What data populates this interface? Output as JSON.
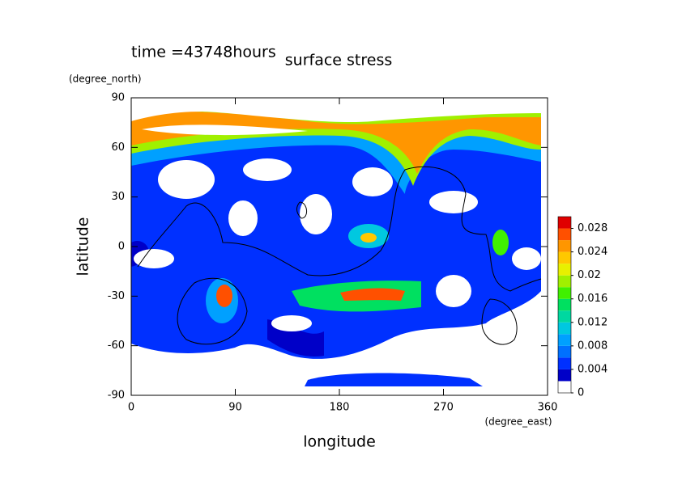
{
  "chart_data": {
    "type": "contour",
    "title": "surface stress",
    "annotation": "time =43748hours",
    "x_label": "longitude",
    "x_unit": "(degree_east)",
    "y_label": "latitude",
    "y_unit": "(degree_north)",
    "xlim": [
      0,
      360
    ],
    "xticks": [
      0,
      90,
      180,
      270,
      360
    ],
    "ylim": [
      -90,
      90
    ],
    "yticks": [
      90,
      60,
      30,
      0,
      -30,
      -60,
      -90
    ],
    "colorbar": {
      "lim": [
        0,
        0.03
      ],
      "ticks": [
        0,
        0.004,
        0.008,
        0.012,
        0.016,
        0.02,
        0.024,
        0.028
      ],
      "levels": [
        0,
        0.002,
        0.004,
        0.006,
        0.008,
        0.01,
        0.012,
        0.014,
        0.016,
        0.018,
        0.02,
        0.022,
        0.024,
        0.026,
        0.028,
        0.03
      ],
      "colors": [
        "#ffffff",
        "#0000c8",
        "#0030ff",
        "#0070ff",
        "#00a0ff",
        "#00c8e0",
        "#00d8a0",
        "#00e060",
        "#40f000",
        "#a0f000",
        "#e8f000",
        "#ffc800",
        "#ff9600",
        "#ff5000",
        "#e00000"
      ]
    }
  }
}
